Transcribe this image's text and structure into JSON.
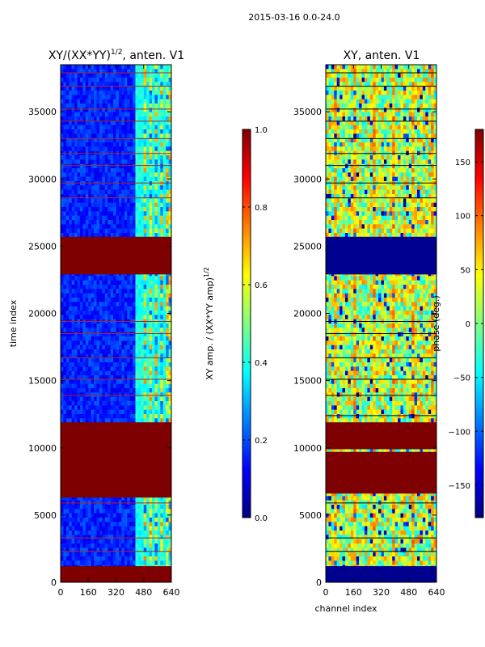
{
  "figure": {
    "suptitle": "2015-03-16 0.0-24.0"
  },
  "colors": {
    "jet": [
      "#00007f",
      "#0000ff",
      "#007fff",
      "#00ffff",
      "#7fff7f",
      "#ffff00",
      "#ff7f00",
      "#ff0000",
      "#7f0000"
    ],
    "flag_fill": "#7f0000",
    "flag_fill_phase": "#00008f",
    "axis": "#000000",
    "background": "#ffffff"
  },
  "chart_data": [
    {
      "type": "heatmap",
      "id": "amp",
      "title": "XY/(XX*YY)^(1/2), anten. V1",
      "title_main": "XY/(XX*YY)",
      "title_exp": "1/2",
      "title_tail": ", anten. V1",
      "xlabel": "",
      "ylabel": "time index",
      "xlim": [
        0,
        640
      ],
      "ylim": [
        0,
        38500
      ],
      "xticks": [
        0,
        160,
        320,
        480,
        640
      ],
      "yticks": [
        0,
        5000,
        10000,
        15000,
        20000,
        25000,
        30000,
        35000
      ],
      "flagged_time_bands": [
        [
          0,
          1200
        ],
        [
          6300,
          11900
        ],
        [
          22900,
          25700
        ]
      ],
      "flagged_time_lines": [
        2300,
        3300,
        5900,
        13900,
        15100,
        16700,
        18500,
        19400,
        28600,
        29700,
        31000,
        31900,
        33000,
        34300,
        35200,
        36900,
        37900
      ],
      "bright_channel_columns": [
        440,
        470,
        500,
        530,
        560,
        590
      ],
      "colorbar": {
        "label": "XY amp. / (XX*YY amp)^(1/2)",
        "label_main": "XY amp. / (XX*YY amp)",
        "label_exp": "1/2",
        "range": [
          0.0,
          1.0
        ],
        "ticks": [
          0.0,
          0.2,
          0.4,
          0.6,
          0.8,
          1.0
        ],
        "tick_labels": [
          "0.0",
          "0.2",
          "0.4",
          "0.6",
          "0.8",
          "1.0"
        ]
      }
    },
    {
      "type": "heatmap",
      "id": "phase",
      "title": "XY, anten. V1",
      "xlabel": "channel index",
      "ylabel": "",
      "xlim": [
        0,
        640
      ],
      "ylim": [
        0,
        38500
      ],
      "xticks": [
        0,
        160,
        320,
        480,
        640
      ],
      "yticks": [
        0,
        5000,
        10000,
        15000,
        20000,
        25000,
        30000,
        35000
      ],
      "flagged_time_bands": [
        [
          0,
          1200
        ],
        [
          22900,
          25700
        ]
      ],
      "dark_red_bands": [
        [
          6600,
          9700
        ],
        [
          9900,
          11900
        ]
      ],
      "flagged_time_lines": [
        2300,
        3300,
        5900,
        12400,
        13900,
        15100,
        16700,
        18500,
        19400,
        28600,
        29700,
        31000,
        31900,
        33000,
        34300,
        35200,
        36900,
        37900
      ],
      "colorbar": {
        "label": "phase (deg.)",
        "range": [
          -180,
          180
        ],
        "ticks": [
          -150,
          -100,
          -50,
          0,
          50,
          100,
          150
        ],
        "tick_labels": [
          "−150",
          "−100",
          "−50",
          "0",
          "50",
          "100",
          "150"
        ]
      }
    }
  ]
}
